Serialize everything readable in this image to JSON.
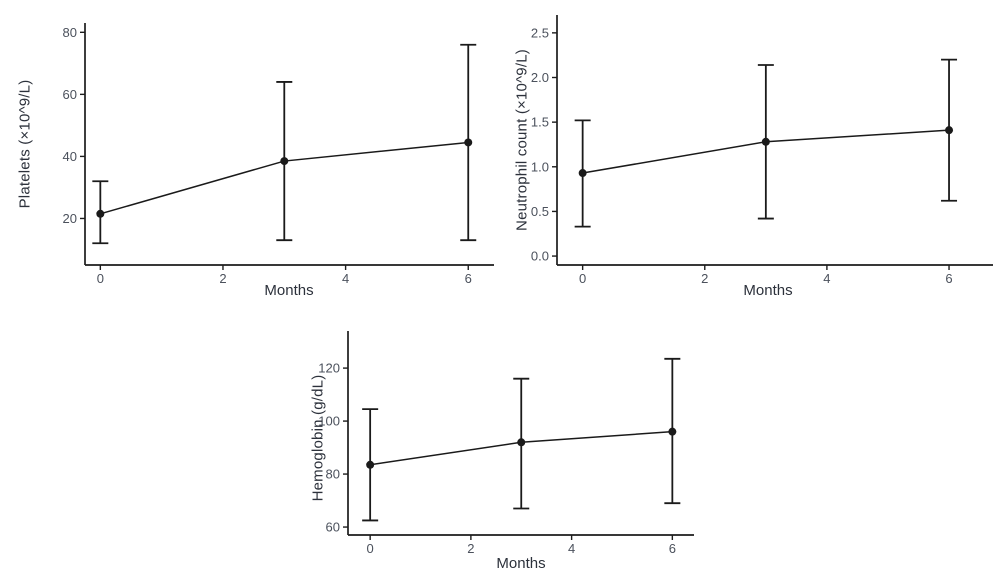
{
  "figure": {
    "background": "#ffffff",
    "panel_count": 3
  },
  "styles": {
    "axis_color": "#1c1c1c",
    "data_color": "#1a1a1a",
    "tick_label_color": "#4b515c",
    "axis_label_color": "#2c313b"
  },
  "chart_data": [
    {
      "id": "platelets",
      "type": "line",
      "title": "",
      "xlabel": "Months",
      "ylabel": "Platelets (×10^9/L)",
      "x": [
        0,
        3,
        6
      ],
      "series": [
        {
          "name": "mean",
          "values": [
            21.5,
            38.5,
            44.5
          ]
        }
      ],
      "error_bars": {
        "low": [
          12,
          13,
          13
        ],
        "high": [
          32,
          64,
          76
        ]
      },
      "xticks": {
        "values": [
          0,
          2,
          4,
          6
        ],
        "labels": [
          "0",
          "2",
          "4",
          "6"
        ]
      },
      "yticks": {
        "values": [
          20,
          40,
          60,
          80
        ],
        "labels": [
          "20",
          "40",
          "60",
          "80"
        ]
      },
      "xlim": [
        -0.25,
        6.42
      ],
      "ylim": [
        5,
        83
      ],
      "grid": false,
      "legend": "none",
      "marker": "circle"
    },
    {
      "id": "neutrophils",
      "type": "line",
      "title": "",
      "xlabel": "Months",
      "ylabel": "Neutrophil count (×10^9/L)",
      "x": [
        0,
        3,
        6
      ],
      "series": [
        {
          "name": "mean",
          "values": [
            0.93,
            1.28,
            1.41
          ]
        }
      ],
      "error_bars": {
        "low": [
          0.33,
          0.42,
          0.62
        ],
        "high": [
          1.52,
          2.14,
          2.2
        ]
      },
      "xticks": {
        "values": [
          0,
          2,
          4,
          6
        ],
        "labels": [
          "0",
          "2",
          "4",
          "6"
        ]
      },
      "yticks": {
        "values": [
          0,
          0.5,
          1.0,
          1.5,
          2.0,
          2.5
        ],
        "labels": [
          "0.0",
          "0.5",
          "1.0",
          "1.5",
          "2.0",
          "2.5"
        ]
      },
      "xlim": [
        -0.42,
        6.72
      ],
      "ylim": [
        -0.1,
        2.7
      ],
      "grid": false,
      "legend": "none",
      "marker": "circle"
    },
    {
      "id": "hemoglobin",
      "type": "line",
      "title": "",
      "xlabel": "Months",
      "ylabel": "Hemoglobin (g/dL)",
      "x": [
        0,
        3,
        6
      ],
      "series": [
        {
          "name": "mean",
          "values": [
            83.5,
            92,
            96
          ]
        }
      ],
      "error_bars": {
        "low": [
          62.5,
          67,
          69
        ],
        "high": [
          104.5,
          116,
          123.5
        ]
      },
      "xticks": {
        "values": [
          0,
          2,
          4,
          6
        ],
        "labels": [
          "0",
          "2",
          "4",
          "6"
        ]
      },
      "yticks": {
        "values": [
          60,
          80,
          100,
          120
        ],
        "labels": [
          "60",
          "80",
          "100",
          "120"
        ]
      },
      "xlim": [
        -0.44,
        6.43
      ],
      "ylim": [
        57,
        134
      ],
      "grid": false,
      "legend": "none",
      "marker": "circle"
    }
  ]
}
